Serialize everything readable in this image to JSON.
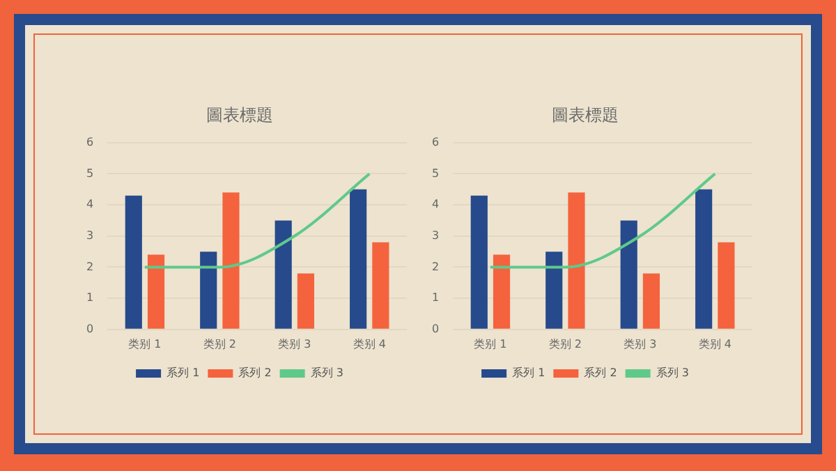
{
  "chart_data": [
    {
      "type": "bar",
      "title": "圖表標題",
      "categories": [
        "类别 1",
        "类别 2",
        "类别 3",
        "类别 4"
      ],
      "series": [
        {
          "name": "系列 1",
          "color": "#264a8c",
          "values": [
            4.3,
            2.5,
            3.5,
            4.5
          ]
        },
        {
          "name": "系列 2",
          "color": "#f4633e",
          "values": [
            2.4,
            4.4,
            1.8,
            2.8
          ]
        },
        {
          "name": "系列 3",
          "color": "#5fc98a",
          "type": "line",
          "values": [
            2,
            2,
            3,
            5
          ]
        }
      ],
      "ylim": [
        0,
        6
      ],
      "yticks": [
        0,
        1,
        2,
        3,
        4,
        5,
        6
      ],
      "grid": "y",
      "legend": "bottom",
      "marker": "none"
    },
    {
      "type": "bar",
      "title": "圖表標題",
      "categories": [
        "类别 1",
        "类别 2",
        "类别 3",
        "类别 4"
      ],
      "series": [
        {
          "name": "系列 1",
          "color": "#264a8c",
          "values": [
            4.3,
            2.5,
            3.5,
            4.5
          ]
        },
        {
          "name": "系列 2",
          "color": "#f4633e",
          "values": [
            2.4,
            4.4,
            1.8,
            2.8
          ]
        },
        {
          "name": "系列 3",
          "color": "#5fc98a",
          "type": "line",
          "values": [
            2,
            2,
            3,
            5
          ]
        }
      ],
      "ylim": [
        0,
        6
      ],
      "yticks": [
        0,
        1,
        2,
        3,
        4,
        5,
        6
      ],
      "grid": "y",
      "legend": "bottom",
      "marker": "none"
    }
  ]
}
